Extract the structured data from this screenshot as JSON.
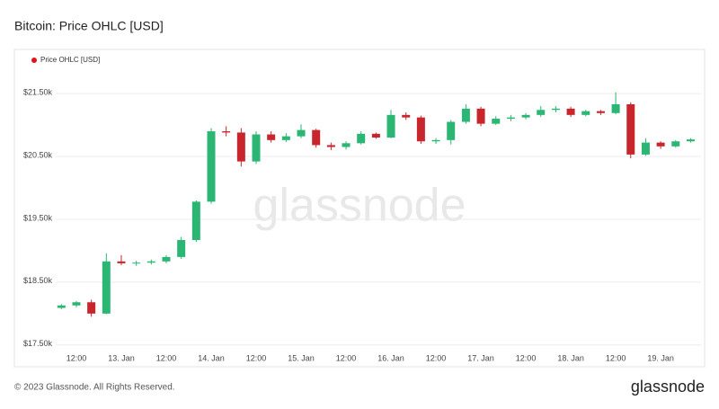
{
  "chart_data": {
    "type": "candlestick",
    "title": "Bitcoin: Price OHLC [USD]",
    "categories": [
      null,
      "12:00",
      null,
      null,
      "13. Jan",
      null,
      null,
      "12:00",
      null,
      null,
      "14. Jan",
      null,
      null,
      "12:00",
      null,
      null,
      "15. Jan",
      null,
      null,
      "12:00",
      null,
      null,
      "16. Jan",
      null,
      null,
      "12:00",
      null,
      null,
      "17. Jan",
      null,
      null,
      "12:00",
      null,
      null,
      "18. Jan",
      null,
      null,
      "12:00",
      null,
      null,
      "19. Jan",
      null,
      null
    ],
    "series": [
      {
        "name": "Price OHLC [USD]",
        "color": "#e0141e",
        "up_color": "#2bb673",
        "down_color": "#c9252c",
        "open": [
          18090,
          18130,
          18180,
          18000,
          18830,
          18800,
          18810,
          18830,
          18900,
          19170,
          19780,
          20900,
          20880,
          20420,
          20850,
          20760,
          20820,
          20920,
          20680,
          20650,
          20710,
          20860,
          20800,
          21160,
          21120,
          20740,
          20760,
          21050,
          21260,
          21020,
          21100,
          21120,
          21160,
          21240,
          21260,
          21160,
          21220,
          21190,
          21330,
          20530,
          20720,
          20660,
          20740
        ],
        "high": [
          18150,
          18200,
          18220,
          18960,
          18930,
          18840,
          18860,
          18930,
          19220,
          19800,
          20950,
          20980,
          20950,
          20900,
          20900,
          20870,
          21010,
          20940,
          20720,
          20740,
          20900,
          20880,
          21240,
          21200,
          21150,
          20790,
          21080,
          21330,
          21290,
          21140,
          21160,
          21190,
          21300,
          21300,
          21290,
          21240,
          21240,
          21520,
          21360,
          20790,
          20740,
          20760,
          20790
        ],
        "low": [
          18070,
          18100,
          17950,
          17990,
          18770,
          18760,
          18780,
          18800,
          18870,
          19140,
          19750,
          20820,
          20340,
          20380,
          20720,
          20730,
          20790,
          20640,
          20600,
          20610,
          20690,
          20780,
          20790,
          21080,
          20700,
          20700,
          20690,
          21020,
          20980,
          21000,
          21060,
          21090,
          21130,
          21200,
          21130,
          21140,
          21160,
          21170,
          20470,
          20510,
          20620,
          20640,
          20720
        ],
        "close": [
          18130,
          18180,
          18000,
          18830,
          18800,
          18810,
          18830,
          18900,
          19170,
          19780,
          20900,
          20880,
          20420,
          20850,
          20760,
          20820,
          20920,
          20680,
          20650,
          20710,
          20860,
          20800,
          21160,
          21120,
          20740,
          20760,
          21050,
          21260,
          21020,
          21100,
          21120,
          21160,
          21240,
          21260,
          21160,
          21220,
          21190,
          21330,
          20530,
          20720,
          20660,
          20740,
          20770
        ]
      }
    ],
    "ylim": [
      17440,
      21730
    ],
    "yticks": [
      {
        "value": 17500,
        "label": "$17.50k"
      },
      {
        "value": 18500,
        "label": "$18.50k"
      },
      {
        "value": 19500,
        "label": "$19.50k"
      },
      {
        "value": 20500,
        "label": "$20.50k"
      },
      {
        "value": 21500,
        "label": "$21.50k"
      }
    ],
    "grid": true,
    "legend": "top-left"
  },
  "watermark": "glassnode",
  "footer": "© 2023 Glassnode. All Rights Reserved.",
  "logo": "glassnode"
}
